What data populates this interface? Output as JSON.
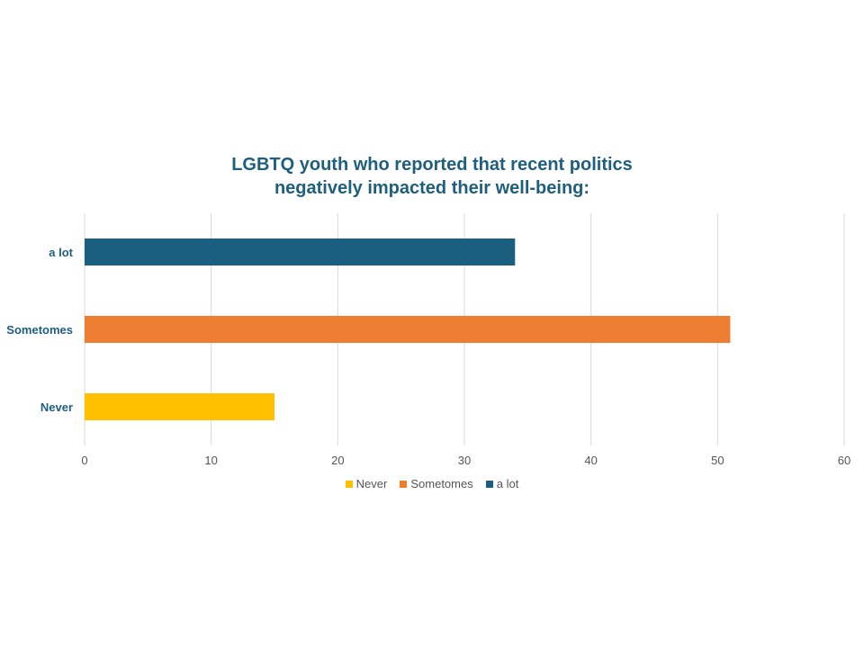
{
  "chart_data": {
    "type": "bar",
    "orientation": "horizontal",
    "title": "LGBTQ youth who reported that recent politics negatively impacted their well-being:",
    "title_lines": [
      "LGBTQ youth who reported that recent politics",
      "negatively impacted their well-being:"
    ],
    "categories": [
      "Never",
      "Sometomes",
      "a lot"
    ],
    "values": [
      15,
      51,
      34
    ],
    "colors": [
      "#ffc000",
      "#ed7d31",
      "#1a5f80"
    ],
    "xlim": [
      0,
      60
    ],
    "x_ticks": [
      0,
      10,
      20,
      30,
      40,
      50,
      60
    ],
    "grid": true,
    "legend_position": "bottom",
    "legend": [
      {
        "name": "Never",
        "color": "#ffc000"
      },
      {
        "name": "Sometomes",
        "color": "#ed7d31"
      },
      {
        "name": "a lot",
        "color": "#1a5f80"
      }
    ]
  }
}
